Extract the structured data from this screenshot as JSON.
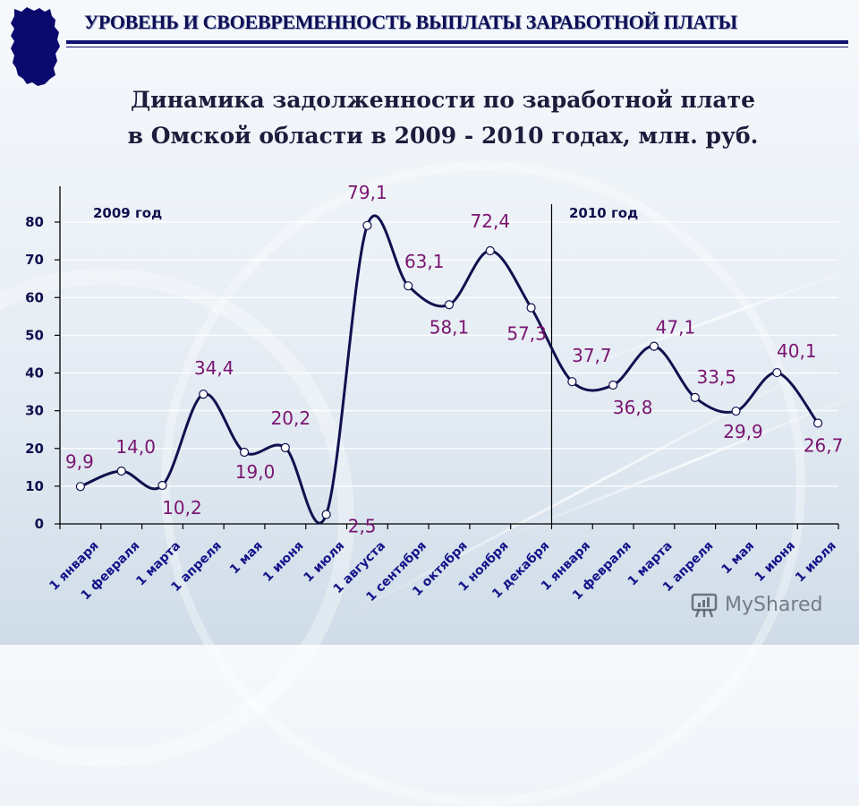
{
  "header": {
    "title": "УРОВЕНЬ И СВОЕВРЕМЕННОСТЬ ВЫПЛАТЫ ЗАРАБОТНОЙ ПЛАТЫ",
    "logo_icon": "omsk-region-map-icon"
  },
  "subtitle": {
    "line1": "Динамика задолженности по заработной плате",
    "line2": "в Омской области в 2009 - 2010 годах, млн. руб."
  },
  "watermark": {
    "icon": "presentation-chart-icon",
    "text": "MyShared"
  },
  "colors": {
    "line": "#10104e",
    "data_label": "#7a1470",
    "axis_text": "#10104e",
    "x_label": "#14148a",
    "header": "#0d0d55"
  },
  "chart_data": {
    "type": "line",
    "title": "Динамика задолженности по заработной плате в Омской области в 2009 - 2010 годах, млн. руб.",
    "xlabel": "",
    "ylabel": "",
    "ylim": [
      0,
      80
    ],
    "yticks": [
      0,
      10,
      20,
      30,
      40,
      50,
      60,
      70,
      80
    ],
    "grid": true,
    "smooth": true,
    "markers": "hollow-circle",
    "legend": "none",
    "period_labels": [
      {
        "label": "2009 год",
        "start_index": 0
      },
      {
        "label": "2010 год",
        "start_index": 12
      }
    ],
    "divider_after_index": 11,
    "categories": [
      "1 января",
      "1 февраля",
      "1 марта",
      "1 апреля",
      "1 мая",
      "1 июня",
      "1 июля",
      "1 августа",
      "1 сентября",
      "1 октября",
      "1 ноября",
      "1 декабря",
      "1 января",
      "1 февраля",
      "1 марта",
      "1 апреля",
      "1 мая",
      "1 июня",
      "1 июля"
    ],
    "series": [
      {
        "name": "Задолженность по заработной плате, млн. руб.",
        "values": [
          9.9,
          14.0,
          10.2,
          34.4,
          19.0,
          20.2,
          2.5,
          79.1,
          63.1,
          58.1,
          72.4,
          57.3,
          37.7,
          36.8,
          47.1,
          33.5,
          29.9,
          40.1,
          26.7
        ],
        "labels": [
          "9,9",
          "14,0",
          "10,2",
          "34,4",
          "19,0",
          "20,2",
          "2,5",
          "79,1",
          "63,1",
          "58,1",
          "72,4",
          "57,3",
          "37,7",
          "36,8",
          "47,1",
          "33,5",
          "29,9",
          "40,1",
          "26,7"
        ]
      }
    ]
  }
}
